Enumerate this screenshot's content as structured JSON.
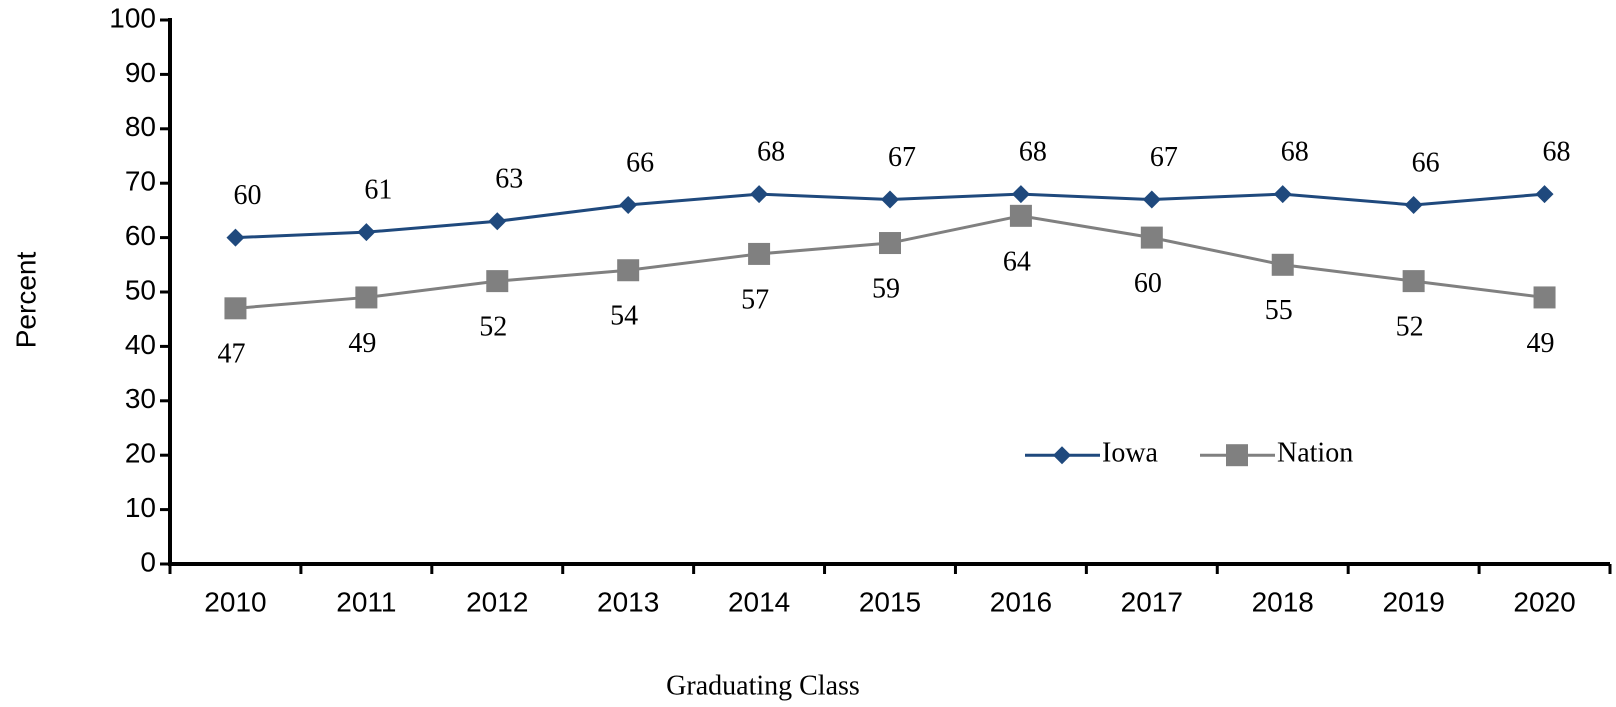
{
  "chart_data": {
    "type": "line",
    "x_label": "Graduating Class",
    "y_label": "Percent",
    "categories": [
      "2010",
      "2011",
      "2012",
      "2013",
      "2014",
      "2015",
      "2016",
      "2017",
      "2018",
      "2019",
      "2020"
    ],
    "series": [
      {
        "name": "Iowa",
        "color": "#1f497d",
        "marker": "diamond",
        "values": [
          60,
          61,
          63,
          66,
          68,
          67,
          68,
          67,
          68,
          66,
          68
        ]
      },
      {
        "name": "Nation",
        "color": "#808080",
        "marker": "square",
        "values": [
          47,
          49,
          52,
          54,
          57,
          59,
          64,
          60,
          55,
          52,
          49
        ]
      }
    ],
    "ylim": [
      0,
      100
    ],
    "yticks": [
      0,
      10,
      20,
      30,
      40,
      50,
      60,
      70,
      80,
      90,
      100
    ],
    "legend": "lower right"
  }
}
